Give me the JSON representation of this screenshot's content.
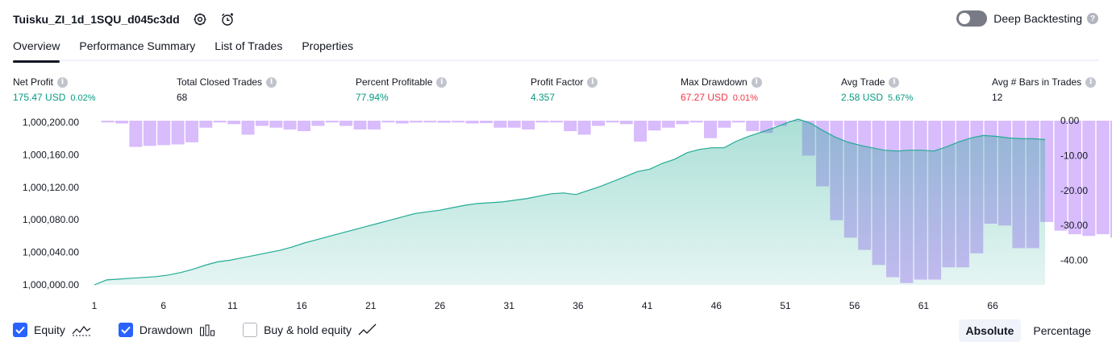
{
  "header": {
    "title": "Tuisku_ZI_1d_1SQU_d045c3dd",
    "icons": [
      "settings-gear-icon",
      "add-alert-clock-icon"
    ]
  },
  "deep_backtesting": {
    "label": "Deep Backtesting",
    "enabled": false,
    "help": "?"
  },
  "tabs": [
    {
      "label": "Overview",
      "active": true
    },
    {
      "label": "Performance Summary",
      "active": false
    },
    {
      "label": "List of Trades",
      "active": false
    },
    {
      "label": "Properties",
      "active": false
    }
  ],
  "metrics": [
    {
      "label": "Net Profit",
      "value": "175.47 USD",
      "pct": "0.02%",
      "color": "#089981"
    },
    {
      "label": "Total Closed Trades",
      "value": "68",
      "pct": "",
      "color": "#131722"
    },
    {
      "label": "Percent Profitable",
      "value": "77.94%",
      "pct": "",
      "color": "#089981"
    },
    {
      "label": "Profit Factor",
      "value": "4.357",
      "pct": "",
      "color": "#089981"
    },
    {
      "label": "Max Drawdown",
      "value": "67.27 USD",
      "pct": "0.01%",
      "color": "#f23645"
    },
    {
      "label": "Avg Trade",
      "value": "2.58 USD",
      "pct": "5.67%",
      "color": "#089981"
    },
    {
      "label": "Avg # Bars in Trades",
      "value": "12",
      "pct": "",
      "color": "#131722"
    }
  ],
  "chart_data": {
    "type": "area",
    "x_tick_labels": [
      "1",
      "6",
      "11",
      "16",
      "21",
      "26",
      "31",
      "36",
      "41",
      "46",
      "51",
      "56",
      "61",
      "66"
    ],
    "left_axis_labels": [
      "1,000,200.00",
      "1,000,160.00",
      "1,000,120.00",
      "1,000,080.00",
      "1,000,040.00",
      "1,000,000.00"
    ],
    "right_axis_labels": [
      "0.00",
      "-10.00",
      "-20.00",
      "-30.00",
      "-40.00"
    ],
    "equity_ylim": [
      1000000,
      1000200
    ],
    "drawdown_ylim": [
      -47,
      0
    ],
    "equity": [
      1000000,
      1000006,
      1000007,
      1000008,
      1000009,
      1000010,
      1000012,
      1000015,
      1000019,
      1000024,
      1000028,
      1000030,
      1000033,
      1000036,
      1000039,
      1000042,
      1000046,
      1000051,
      1000055,
      1000059,
      1000063,
      1000067,
      1000071,
      1000075,
      1000079,
      1000083,
      1000087,
      1000089,
      1000091,
      1000094,
      1000097,
      1000099,
      1000100,
      1000101,
      1000103,
      1000105,
      1000108,
      1000111,
      1000112,
      1000110,
      1000115,
      1000120,
      1000126,
      1000132,
      1000138,
      1000141,
      1000148,
      1000153,
      1000161,
      1000165,
      1000167,
      1000167,
      1000175,
      1000181,
      1000186,
      1000191,
      1000197,
      1000202,
      1000197,
      1000188,
      1000180,
      1000174,
      1000170,
      1000167,
      1000164,
      1000163,
      1000164,
      1000164,
      1000163,
      1000168,
      1000174,
      1000179,
      1000182,
      1000181,
      1000179,
      1000178,
      1000178,
      1000177
    ],
    "drawdown": [
      -0.5,
      -0.8,
      -7.5,
      -7.2,
      -7.0,
      -6.8,
      -6.2,
      -2.0,
      -0.5,
      -1.0,
      -4.0,
      -1.5,
      -2.0,
      -2.5,
      -3.0,
      -1.5,
      -0.5,
      -1.5,
      -2.5,
      -2.5,
      -0.5,
      -0.8,
      -0.5,
      -0.5,
      -0.6,
      -0.5,
      -0.8,
      -0.7,
      -2.0,
      -2.0,
      -2.5,
      -0.5,
      -0.5,
      -3.0,
      -4.0,
      -1.5,
      -0.5,
      -1.0,
      -6.0,
      -2.8,
      -2.0,
      -1.0,
      -0.5,
      -5.0,
      -2.0,
      -0.5,
      -3.0,
      -3.5,
      -1.5,
      0,
      -10.0,
      -18.8,
      -28.5,
      -33.5,
      -37.0,
      -41.3,
      -44.8,
      -46.5,
      -45.5,
      -45.5,
      -42.0,
      -42.0,
      -38.0,
      -29.5,
      -30.0,
      -36.5,
      -36.5,
      -29.0,
      -31.5,
      -32.5,
      -33.0,
      -32.5,
      -33.5
    ]
  },
  "legend": [
    {
      "label": "Equity",
      "checked": true,
      "glyph": "equity-area-icon"
    },
    {
      "label": "Drawdown",
      "checked": true,
      "glyph": "drawdown-bars-icon"
    },
    {
      "label": "Buy & hold equity",
      "checked": false,
      "glyph": "buy-hold-line-icon"
    }
  ],
  "mode": {
    "absolute": "Absolute",
    "percentage": "Percentage",
    "active": "absolute"
  },
  "colors": {
    "equity_line": "#22ab94",
    "equity_fill": "#22ab94",
    "drawdown_bar": "#cba6fb",
    "accent": "#2962ff"
  }
}
